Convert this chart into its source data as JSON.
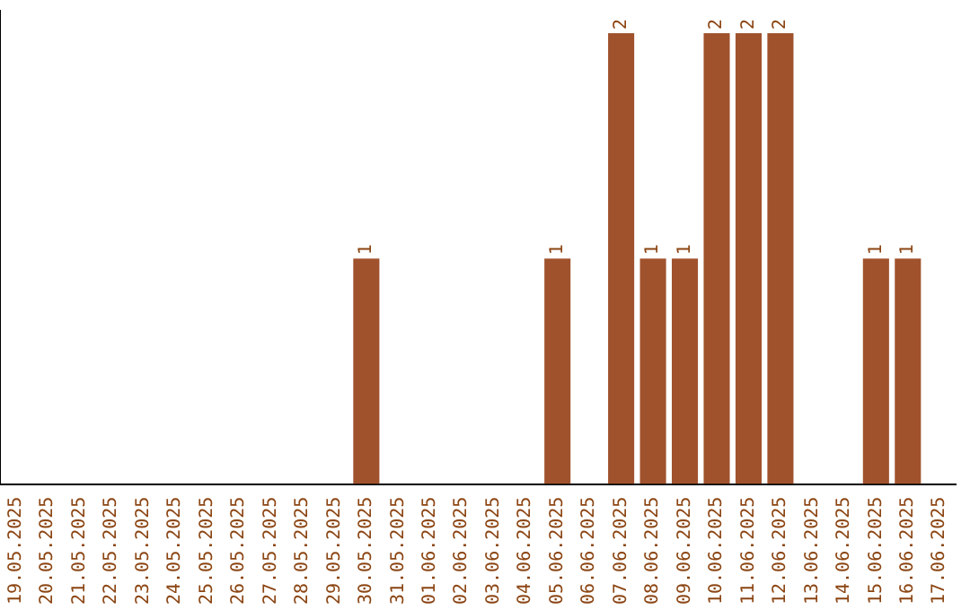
{
  "chart_data": {
    "type": "bar",
    "categories": [
      "19.05.2025",
      "20.05.2025",
      "21.05.2025",
      "22.05.2025",
      "23.05.2025",
      "24.05.2025",
      "25.05.2025",
      "26.05.2025",
      "27.05.2025",
      "28.05.2025",
      "29.05.2025",
      "30.05.2025",
      "31.05.2025",
      "01.06.2025",
      "02.06.2025",
      "03.06.2025",
      "04.06.2025",
      "05.06.2025",
      "06.06.2025",
      "07.06.2025",
      "08.06.2025",
      "09.06.2025",
      "10.06.2025",
      "11.06.2025",
      "12.06.2025",
      "13.06.2025",
      "14.06.2025",
      "15.06.2025",
      "16.06.2025",
      "17.06.2025"
    ],
    "values": [
      0,
      0,
      0,
      0,
      0,
      0,
      0,
      0,
      0,
      0,
      0,
      1,
      0,
      0,
      0,
      0,
      0,
      1,
      0,
      2,
      1,
      1,
      2,
      2,
      2,
      0,
      0,
      1,
      1,
      0
    ],
    "value_labels": [
      null,
      null,
      null,
      null,
      null,
      null,
      null,
      null,
      null,
      null,
      null,
      "1",
      null,
      null,
      null,
      null,
      null,
      "1",
      null,
      "2",
      "1",
      "1",
      "2",
      "2",
      "2",
      null,
      null,
      "1",
      "1",
      null
    ],
    "color": "#a0522d",
    "ylim": [
      0,
      2.1
    ],
    "tick_labels": "x",
    "grid": false,
    "legend": false
  }
}
